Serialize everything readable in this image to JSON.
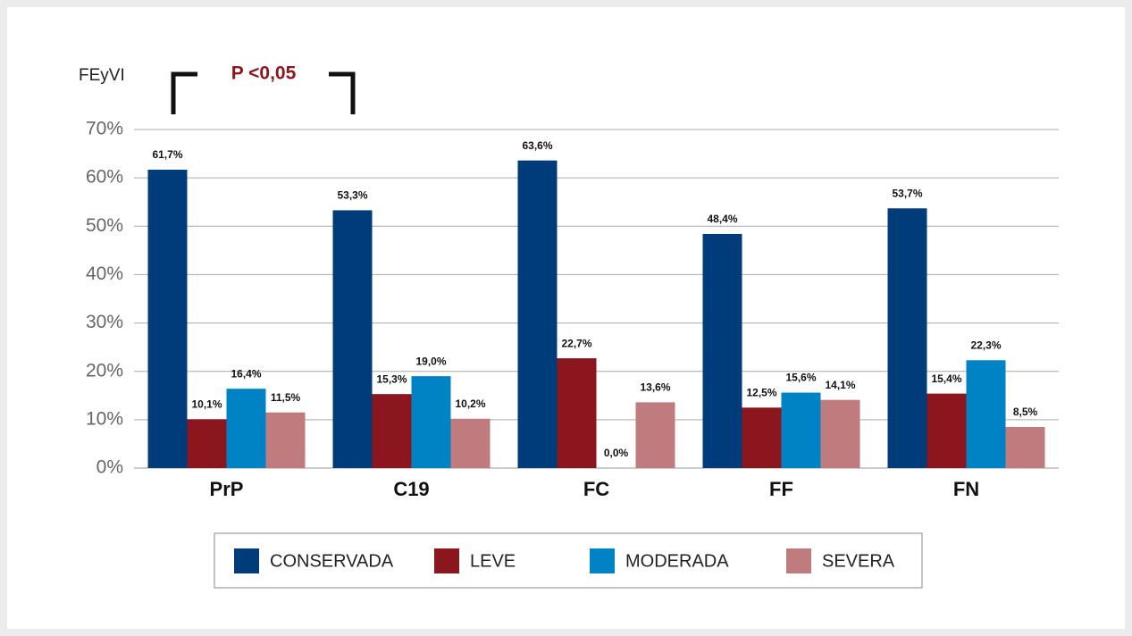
{
  "chart_data": {
    "type": "bar",
    "y_axis_label": "FEyVI",
    "annotation": "P <0,05",
    "categories": [
      "PrP",
      "C19",
      "FC",
      "FF",
      "FN"
    ],
    "series": [
      {
        "name": "CONSERVADA",
        "color": "#003b7a",
        "values": [
          61.7,
          53.3,
          63.6,
          48.4,
          53.7
        ],
        "value_labels": [
          "61,7%",
          "53,3%",
          "63,6%",
          "48,4%",
          "53,7%"
        ]
      },
      {
        "name": "LEVE",
        "color": "#8c161e",
        "values": [
          10.1,
          15.3,
          22.7,
          12.5,
          15.4
        ],
        "value_labels": [
          "10,1%",
          "15,3%",
          "22,7%",
          "12,5%",
          "15,4%"
        ]
      },
      {
        "name": "MODERADA",
        "color": "#0083c4",
        "values": [
          16.4,
          19.0,
          0.0,
          15.6,
          22.3
        ],
        "value_labels": [
          "16,4%",
          "19,0%",
          "0,0%",
          "15,6%",
          "22,3%"
        ]
      },
      {
        "name": "SEVERA",
        "color": "#c07b7e",
        "values": [
          11.5,
          10.2,
          13.6,
          14.1,
          8.5
        ],
        "value_labels": [
          "11,5%",
          "10,2%",
          "13,6%",
          "14,1%",
          "8,5%"
        ]
      }
    ],
    "ylim": [
      0,
      70
    ],
    "yticks": [
      {
        "value": 0,
        "label": "0%"
      },
      {
        "value": 10,
        "label": "10%"
      },
      {
        "value": 20,
        "label": "20%"
      },
      {
        "value": 30,
        "label": "30%"
      },
      {
        "value": 40,
        "label": "40%"
      },
      {
        "value": 50,
        "label": "50%"
      },
      {
        "value": 60,
        "label": "60%"
      },
      {
        "value": 70,
        "label": "70%"
      }
    ],
    "grid": true,
    "legend": "bottom"
  }
}
